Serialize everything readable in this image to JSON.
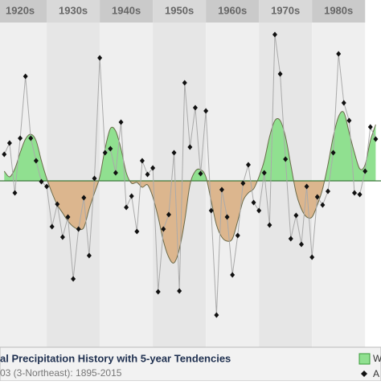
{
  "chart_data": {
    "type": "line",
    "title": "al Precipitation History with 5-year Tendencies",
    "subtitle": "03 (3-Northeast): 1895-2015",
    "xlim": [
      1921.2,
      1993
    ],
    "ylim": [
      -207,
      225
    ],
    "xticks": [
      {
        "value": 1925,
        "label": "1920s"
      },
      {
        "value": 1935,
        "label": "1930s"
      },
      {
        "value": 1945,
        "label": "1940s"
      },
      {
        "value": 1955,
        "label": "1950s"
      },
      {
        "value": 1965,
        "label": "1960s"
      },
      {
        "value": 1975,
        "label": "1970s"
      },
      {
        "value": 1985,
        "label": "1980s"
      }
    ],
    "x": [
      1922,
      1923,
      1924,
      1925,
      1926,
      1927,
      1928,
      1929,
      1930,
      1931,
      1932,
      1933,
      1934,
      1935,
      1936,
      1937,
      1938,
      1939,
      1940,
      1941,
      1942,
      1943,
      1944,
      1945,
      1946,
      1947,
      1948,
      1949,
      1950,
      1951,
      1952,
      1953,
      1954,
      1955,
      1956,
      1957,
      1958,
      1959,
      1960,
      1961,
      1962,
      1963,
      1964,
      1965,
      1966,
      1967,
      1968,
      1969,
      1970,
      1971,
      1972,
      1973,
      1974,
      1975,
      1976,
      1977,
      1978,
      1979,
      1980,
      1981,
      1982,
      1983,
      1984,
      1985,
      1986,
      1987,
      1988,
      1989,
      1990,
      1991,
      1992
    ],
    "series": [
      {
        "name": "W",
        "color": "#90e090",
        "values": [
          12,
          5,
          15,
          35,
          52,
          58,
          50,
          25,
          3,
          -15,
          -30,
          -40,
          -50,
          -57,
          -60,
          -58,
          -35,
          -15,
          5,
          40,
          65,
          62,
          40,
          10,
          -3,
          -2,
          -8,
          -5,
          -20,
          -45,
          -75,
          -95,
          -102,
          -85,
          -50,
          -5,
          12,
          14,
          5,
          -25,
          -55,
          -70,
          -75,
          -72,
          -50,
          -25,
          -15,
          -10,
          5,
          25,
          55,
          75,
          75,
          55,
          20,
          -15,
          -35,
          -45,
          -45,
          -30,
          -10,
          20,
          55,
          80,
          85,
          60,
          35,
          15,
          20,
          50,
          70
        ]
      },
      {
        "name": "A",
        "color": "#111111",
        "values": [
          33,
          47,
          -15,
          53,
          130,
          53,
          25,
          -1,
          -7,
          -57,
          -29,
          -70,
          -45,
          -122,
          -60,
          -21,
          -93,
          3,
          153,
          35,
          40,
          10,
          73,
          -33,
          -19,
          -63,
          25,
          8,
          16,
          -138,
          -60,
          -42,
          35,
          -137,
          122,
          42,
          91,
          9,
          87,
          -37,
          -167,
          -11,
          -45,
          -117,
          -68,
          -3,
          20,
          -27,
          -37,
          10,
          -55,
          182,
          133,
          27,
          -72,
          -43,
          -79,
          -7,
          -95,
          -20,
          -30,
          -13,
          35,
          158,
          97,
          75,
          -15,
          -17,
          12,
          67,
          52
        ]
      }
    ]
  }
}
